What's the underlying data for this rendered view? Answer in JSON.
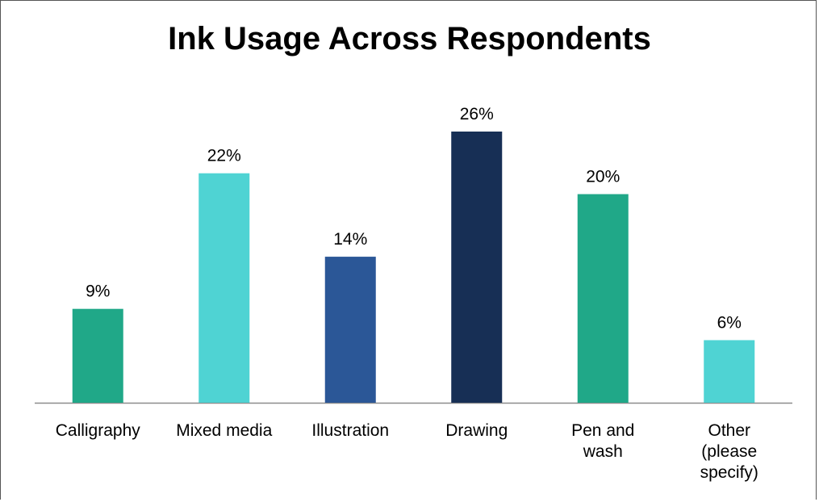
{
  "chart_data": {
    "type": "bar",
    "title": "Ink Usage Across Respondents",
    "xlabel": "",
    "ylabel": "",
    "categories": [
      [
        "Calligraphy"
      ],
      [
        "Mixed media"
      ],
      [
        "Illustration"
      ],
      [
        "Drawing"
      ],
      [
        "Pen and",
        "wash"
      ],
      [
        "Other",
        "(please",
        "specify)"
      ]
    ],
    "values": [
      9,
      22,
      14,
      26,
      20,
      6
    ],
    "data_labels": [
      "9%",
      "22%",
      "14%",
      "26%",
      "20%",
      "6%"
    ],
    "bar_colors": [
      "#20a888",
      "#4fd3d3",
      "#2b5797",
      "#172f55",
      "#20a888",
      "#4fd3d3"
    ],
    "ylim": [
      0,
      26
    ],
    "grid": false,
    "legend": "none"
  }
}
